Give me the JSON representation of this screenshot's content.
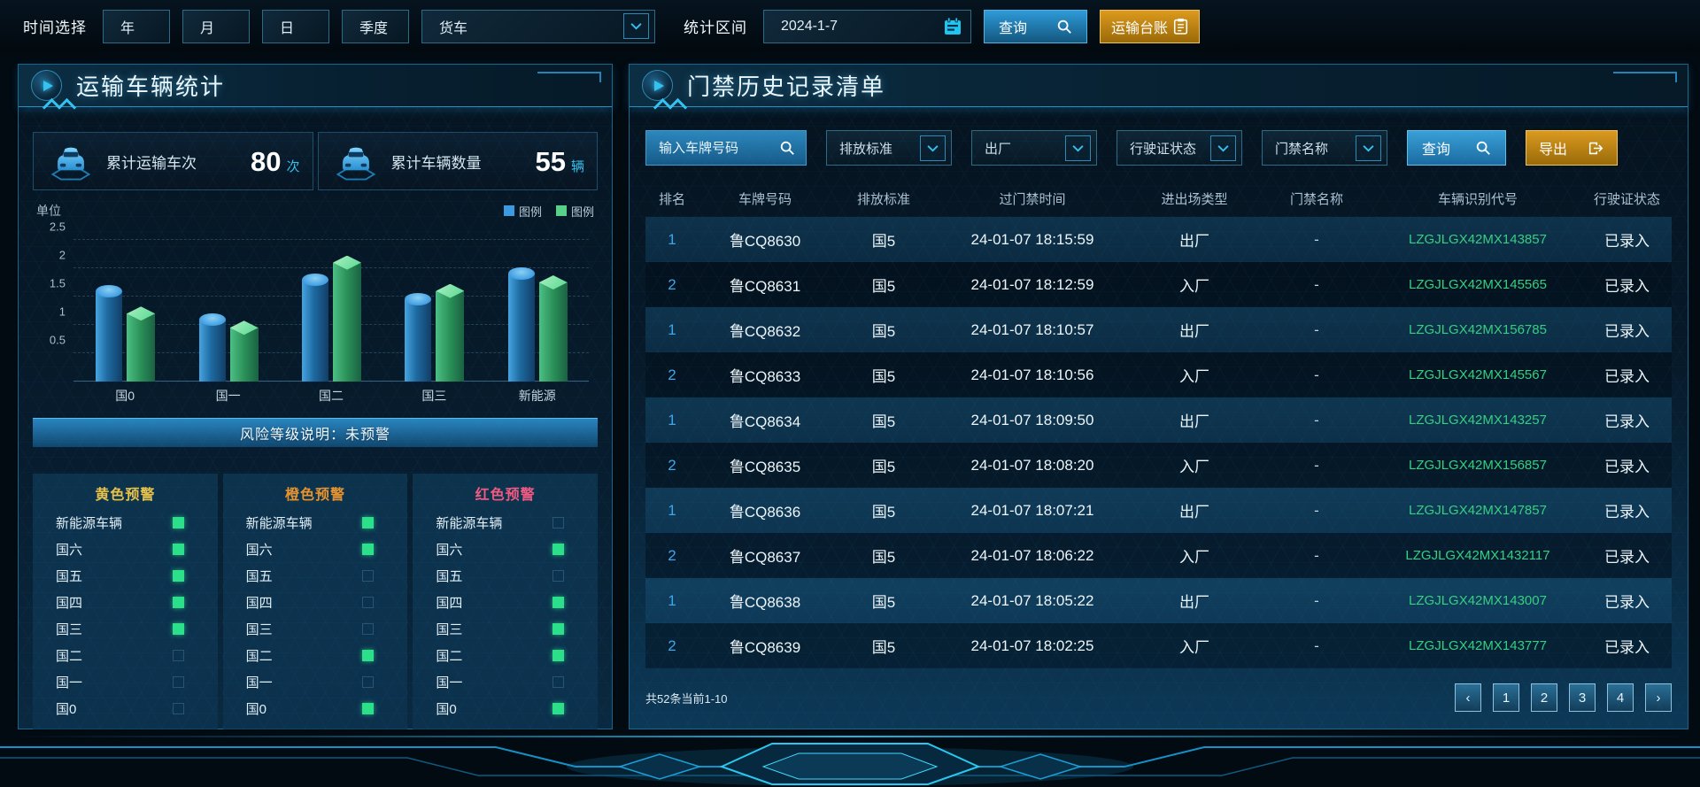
{
  "toolbar": {
    "time_label": "时间选择",
    "period_buttons": [
      "年",
      "月",
      "日",
      "季度"
    ],
    "vehicle_select_value": "货车",
    "range_label": "统计区间",
    "date_value": "2024-1-7",
    "query_label": "查询",
    "ledger_label": "运输台账"
  },
  "left_panel": {
    "title": "运输车辆统计",
    "stats": [
      {
        "label": "累计运输车次",
        "value": "80",
        "unit": "次"
      },
      {
        "label": "累计车辆数量",
        "value": "55",
        "unit": "辆"
      }
    ],
    "risk_note": "风险等级说明：未预警",
    "warnings": [
      {
        "title": "黄色预警",
        "color": "#e8c24a",
        "items": [
          {
            "label": "新能源车辆",
            "active": true
          },
          {
            "label": "国六",
            "active": true
          },
          {
            "label": "国五",
            "active": true
          },
          {
            "label": "国四",
            "active": true
          },
          {
            "label": "国三",
            "active": true
          },
          {
            "label": "国二",
            "active": false
          },
          {
            "label": "国一",
            "active": false
          },
          {
            "label": "国0",
            "active": false
          }
        ]
      },
      {
        "title": "橙色预警",
        "color": "#e8932e",
        "items": [
          {
            "label": "新能源车辆",
            "active": true
          },
          {
            "label": "国六",
            "active": true
          },
          {
            "label": "国五",
            "active": false
          },
          {
            "label": "国四",
            "active": false
          },
          {
            "label": "国三",
            "active": false
          },
          {
            "label": "国二",
            "active": true
          },
          {
            "label": "国一",
            "active": false
          },
          {
            "label": "国0",
            "active": true
          }
        ]
      },
      {
        "title": "红色预警",
        "color": "#f25a82",
        "items": [
          {
            "label": "新能源车辆",
            "active": false
          },
          {
            "label": "国六",
            "active": true
          },
          {
            "label": "国五",
            "active": false
          },
          {
            "label": "国四",
            "active": true
          },
          {
            "label": "国三",
            "active": true
          },
          {
            "label": "国二",
            "active": true
          },
          {
            "label": "国一",
            "active": false
          },
          {
            "label": "国0",
            "active": true
          }
        ]
      }
    ]
  },
  "chart_data": {
    "type": "bar",
    "title": "",
    "ylabel": "单位",
    "xlabel": "",
    "ylim": [
      0,
      2.5
    ],
    "yticks": [
      0.5,
      1,
      1.5,
      2,
      2.5
    ],
    "grid": "dashed-horizontal",
    "legend_position": "top-right",
    "categories": [
      "国0",
      "国一",
      "国二",
      "国三",
      "新能源"
    ],
    "series": [
      {
        "name": "图例",
        "color": "#3c9ae0",
        "values": [
          1.6,
          1.1,
          1.8,
          1.45,
          1.9
        ]
      },
      {
        "name": "图例",
        "color": "#57d08a",
        "values": [
          1.2,
          0.95,
          2.1,
          1.6,
          1.75
        ]
      }
    ]
  },
  "right_panel": {
    "title": "门禁历史记录清单",
    "filters": {
      "search_placeholder": "输入车牌号码",
      "dropdowns": [
        "排放标准",
        "出厂",
        "行驶证状态",
        "门禁名称"
      ],
      "query_label": "查询",
      "export_label": "导出"
    },
    "table": {
      "headers": [
        "排名",
        "车牌号码",
        "排放标准",
        "过门禁时间",
        "进出场类型",
        "门禁名称",
        "车辆识别代号",
        "行驶证状态"
      ],
      "rows": [
        [
          "1",
          "鲁CQ8630",
          "国5",
          "24-01-07 18:15:59",
          "出厂",
          "-",
          "LZGJLGX42MX143857",
          "已录入"
        ],
        [
          "2",
          "鲁CQ8631",
          "国5",
          "24-01-07 18:12:59",
          "入厂",
          "-",
          "LZGJLGX42MX145565",
          "已录入"
        ],
        [
          "1",
          "鲁CQ8632",
          "国5",
          "24-01-07 18:10:57",
          "出厂",
          "-",
          "LZGJLGX42MX156785",
          "已录入"
        ],
        [
          "2",
          "鲁CQ8633",
          "国5",
          "24-01-07 18:10:56",
          "入厂",
          "-",
          "LZGJLGX42MX145567",
          "已录入"
        ],
        [
          "1",
          "鲁CQ8634",
          "国5",
          "24-01-07 18:09:50",
          "出厂",
          "-",
          "LZGJLGX42MX143257",
          "已录入"
        ],
        [
          "2",
          "鲁CQ8635",
          "国5",
          "24-01-07 18:08:20",
          "入厂",
          "-",
          "LZGJLGX42MX156857",
          "已录入"
        ],
        [
          "1",
          "鲁CQ8636",
          "国5",
          "24-01-07 18:07:21",
          "出厂",
          "-",
          "LZGJLGX42MX147857",
          "已录入"
        ],
        [
          "2",
          "鲁CQ8637",
          "国5",
          "24-01-07 18:06:22",
          "入厂",
          "-",
          "LZGJLGX42MX1432117",
          "已录入"
        ],
        [
          "1",
          "鲁CQ8638",
          "国5",
          "24-01-07 18:05:22",
          "出厂",
          "-",
          "LZGJLGX42MX143007",
          "已录入"
        ],
        [
          "2",
          "鲁CQ8639",
          "国5",
          "24-01-07 18:02:25",
          "入厂",
          "-",
          "LZGJLGX42MX143777",
          "已录入"
        ]
      ]
    },
    "pagination": {
      "summary": "共52条当前1-10",
      "prev": "‹",
      "pages": [
        "1",
        "2",
        "3",
        "4"
      ],
      "next": "›"
    }
  },
  "icons": {
    "search": "magnifier",
    "calendar": "calendar",
    "chevron": "chevron-down",
    "clipboard": "clipboard",
    "export": "arrow-out-of-box",
    "play": "play-triangle",
    "car": "car-front",
    "indicator_on_color": "#2ce08a",
    "accent_cyan": "#35c2f0",
    "accent_orange": "#dc9a1e"
  }
}
